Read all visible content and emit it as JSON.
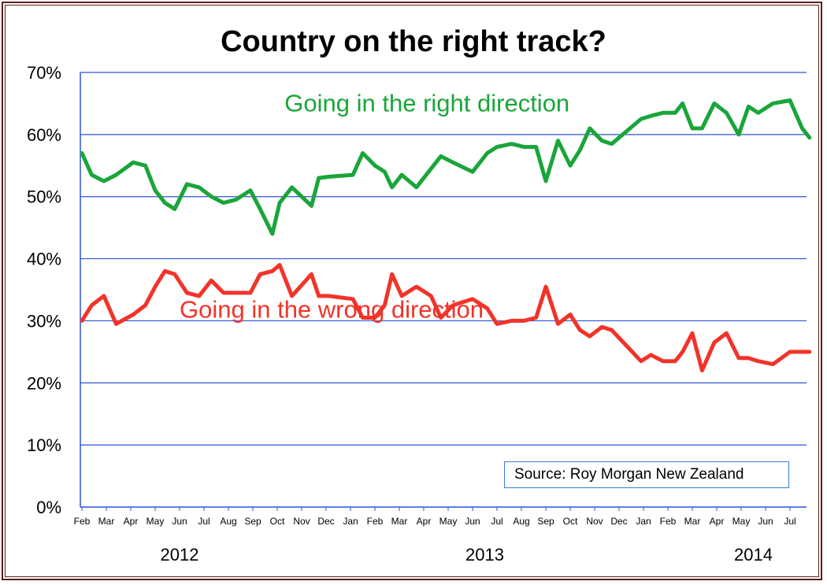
{
  "colors": {
    "right": "#1aa53a",
    "wrong": "#f2332a",
    "grid": "#2e54d6",
    "axis": "#2e54d6"
  },
  "source": "Source: Roy Morgan New Zealand",
  "chart_data": {
    "type": "line",
    "title": "Country on the right track?",
    "ylim": [
      0,
      70
    ],
    "yticks": [
      0,
      10,
      20,
      30,
      40,
      50,
      60,
      70
    ],
    "ytick_labels": [
      "0%",
      "10%",
      "20%",
      "30%",
      "40%",
      "50%",
      "60%",
      "70%"
    ],
    "xlim": [
      0,
      30
    ],
    "month_labels": [
      {
        "x": 0,
        "label": "Feb"
      },
      {
        "x": 1,
        "label": "Mar"
      },
      {
        "x": 2,
        "label": "Apr"
      },
      {
        "x": 3,
        "label": "May"
      },
      {
        "x": 4,
        "label": "Jun"
      },
      {
        "x": 5,
        "label": "Jul"
      },
      {
        "x": 6,
        "label": "Aug"
      },
      {
        "x": 7,
        "label": "Sep"
      },
      {
        "x": 8,
        "label": "Oct"
      },
      {
        "x": 9,
        "label": "Nov"
      },
      {
        "x": 10,
        "label": "Dec"
      },
      {
        "x": 11,
        "label": "Jan"
      },
      {
        "x": 12,
        "label": "Feb"
      },
      {
        "x": 13,
        "label": "Mar"
      },
      {
        "x": 14,
        "label": "Apr"
      },
      {
        "x": 15,
        "label": "May"
      },
      {
        "x": 16,
        "label": "Jun"
      },
      {
        "x": 17,
        "label": "Jul"
      },
      {
        "x": 18,
        "label": "Aug"
      },
      {
        "x": 19,
        "label": "Sep"
      },
      {
        "x": 20,
        "label": "Oct"
      },
      {
        "x": 21,
        "label": "Nov"
      },
      {
        "x": 22,
        "label": "Dec"
      },
      {
        "x": 23,
        "label": "Jan"
      },
      {
        "x": 24,
        "label": "Feb"
      },
      {
        "x": 25,
        "label": "Mar"
      },
      {
        "x": 26,
        "label": "Apr"
      },
      {
        "x": 27,
        "label": "May"
      },
      {
        "x": 28,
        "label": "Jun"
      },
      {
        "x": 29,
        "label": "Jul"
      }
    ],
    "year_labels": [
      {
        "x": 4,
        "label": "2012"
      },
      {
        "x": 16.5,
        "label": "2013"
      },
      {
        "x": 27.5,
        "label": "2014"
      }
    ],
    "series": [
      {
        "name": "Going in the right direction",
        "label_pos": [
          8.3,
          63.7
        ],
        "x": [
          0,
          0.4,
          0.9,
          1.4,
          2.1,
          2.6,
          3.0,
          3.4,
          3.8,
          4.3,
          4.8,
          5.3,
          5.8,
          6.3,
          6.9,
          7.3,
          7.8,
          8.1,
          8.6,
          9.4,
          9.7,
          10.1,
          11.1,
          11.5,
          12.0,
          12.4,
          12.7,
          13.1,
          13.7,
          14.3,
          14.7,
          15.2,
          16.0,
          16.6,
          17.0,
          17.6,
          18.1,
          18.6,
          19.0,
          19.5,
          20.0,
          20.4,
          20.8,
          21.3,
          21.7,
          22.3,
          22.9,
          23.3,
          23.8,
          24.3,
          24.6,
          25.0,
          25.4,
          25.9,
          26.4,
          26.9,
          27.3,
          27.7,
          28.3,
          29.0,
          29.5,
          29.8
        ],
        "y": [
          57.0,
          53.5,
          52.5,
          53.5,
          55.5,
          55.0,
          51.0,
          49.0,
          48.0,
          52.0,
          51.5,
          50.0,
          49.0,
          49.5,
          51.0,
          48.0,
          44.0,
          49.0,
          51.5,
          48.5,
          53.0,
          53.2,
          53.5,
          57.0,
          55.0,
          54.0,
          51.5,
          53.5,
          51.5,
          54.5,
          56.5,
          55.5,
          54.0,
          57.0,
          58.0,
          58.5,
          58.0,
          58.0,
          52.5,
          59.0,
          55.0,
          57.5,
          61.0,
          59.0,
          58.5,
          60.5,
          62.5,
          63.0,
          63.5,
          63.5,
          65.0,
          61.0,
          61.0,
          65.0,
          63.5,
          60.0,
          64.5,
          63.5,
          65.0,
          65.5,
          61.0,
          59.5
        ]
      },
      {
        "name": "Going in the wrong direction",
        "label_pos": [
          4.0,
          30.5
        ],
        "x": [
          0,
          0.4,
          0.9,
          1.4,
          2.1,
          2.6,
          3.0,
          3.4,
          3.8,
          4.3,
          4.8,
          5.3,
          5.8,
          6.3,
          6.9,
          7.3,
          7.8,
          8.1,
          8.6,
          9.4,
          9.7,
          10.1,
          11.1,
          11.5,
          12.0,
          12.4,
          12.7,
          13.1,
          13.7,
          14.3,
          14.7,
          15.2,
          16.0,
          16.6,
          17.0,
          17.6,
          18.1,
          18.6,
          19.0,
          19.5,
          20.0,
          20.4,
          20.8,
          21.3,
          21.7,
          22.3,
          22.9,
          23.3,
          23.8,
          24.3,
          24.6,
          25.0,
          25.4,
          25.9,
          26.4,
          26.9,
          27.3,
          27.7,
          28.3,
          29.0,
          29.5,
          29.8
        ],
        "y": [
          30.0,
          32.5,
          34.0,
          29.5,
          31.0,
          32.5,
          35.5,
          38.0,
          37.5,
          34.5,
          34.0,
          36.5,
          34.5,
          34.5,
          34.5,
          37.5,
          38.0,
          39.0,
          34.0,
          37.5,
          34.0,
          34.0,
          33.5,
          30.5,
          30.5,
          32.5,
          37.5,
          34.0,
          35.5,
          34.0,
          30.5,
          32.5,
          33.5,
          32.0,
          29.5,
          30.0,
          30.0,
          30.5,
          35.5,
          29.5,
          31.0,
          28.5,
          27.5,
          29.0,
          28.5,
          26.0,
          23.5,
          24.5,
          23.5,
          23.5,
          25.0,
          28.0,
          22.0,
          26.5,
          28.0,
          24.0,
          24.0,
          23.5,
          23.0,
          25.0,
          25.0,
          25.0
        ]
      }
    ]
  }
}
